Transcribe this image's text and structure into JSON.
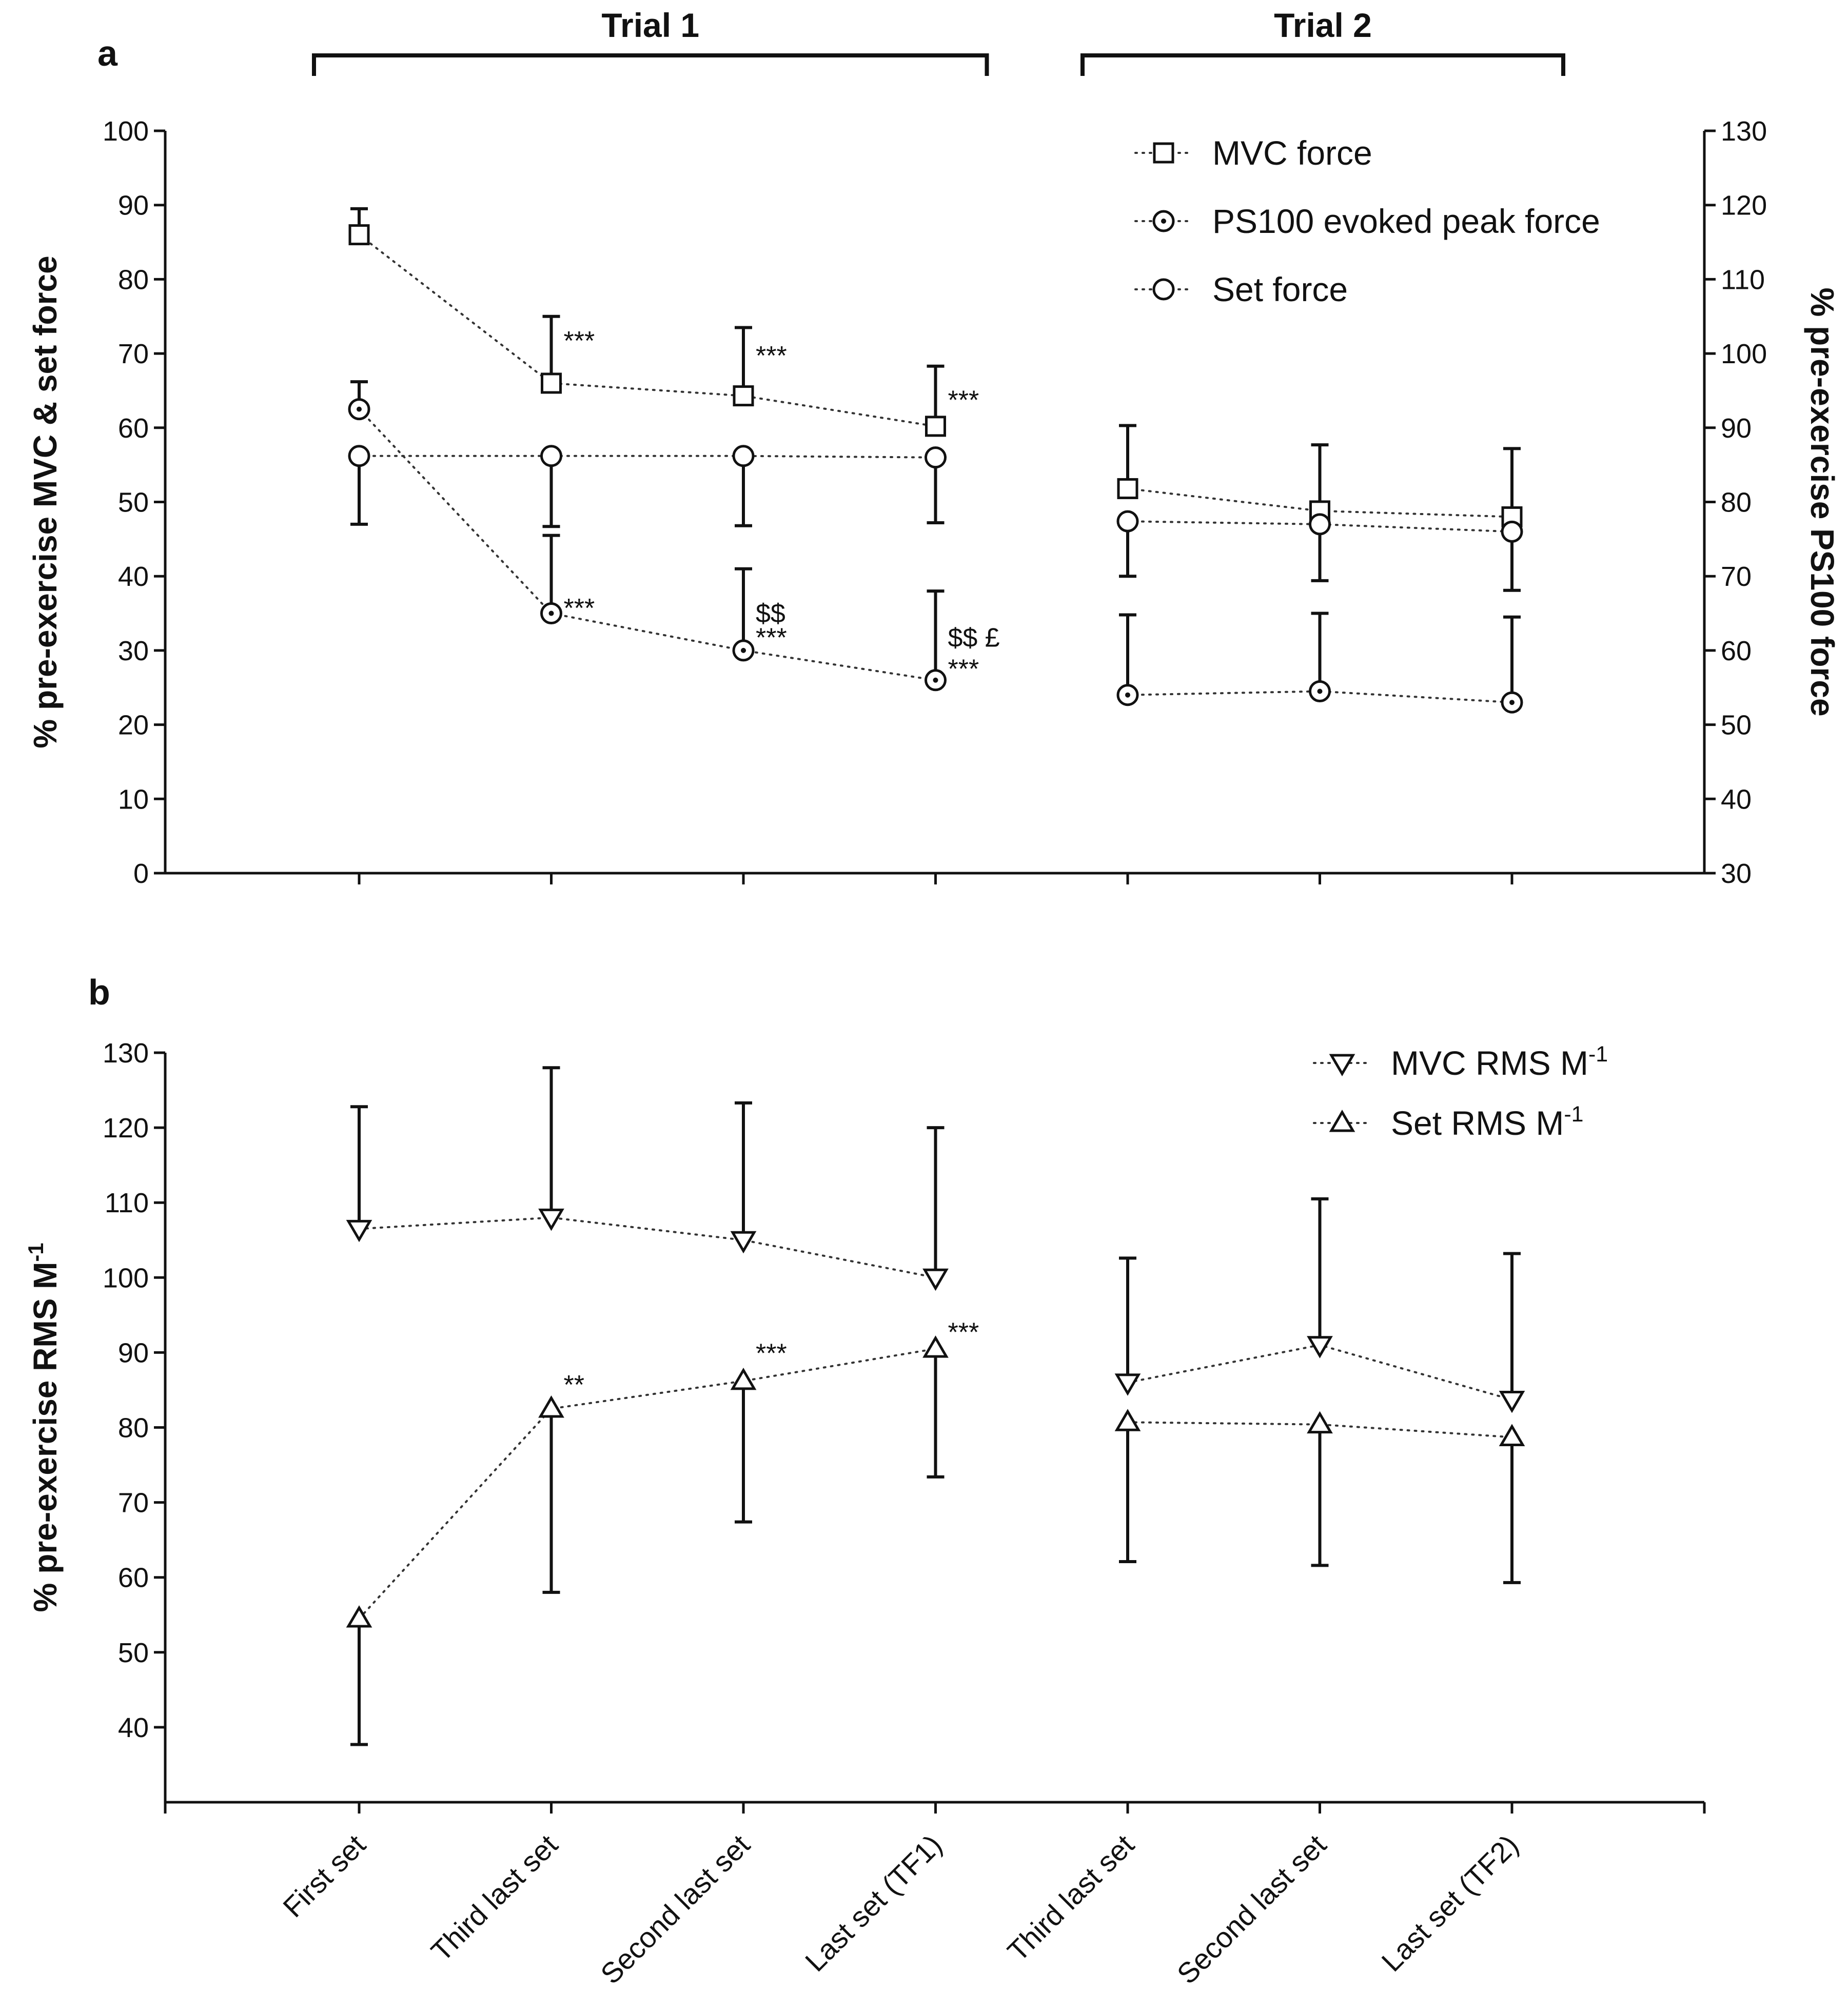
{
  "chart_data": [
    {
      "id": "panel-a",
      "panel_label": "a",
      "type": "line",
      "categories": [
        "First set",
        "Third last set",
        "Second last set",
        "Last set (TF1)",
        "Third last set",
        "Second last set",
        "Last set (TF2)"
      ],
      "groups": [
        {
          "label": "Trial 1",
          "from": 0,
          "to": 3
        },
        {
          "label": "Trial 2",
          "from": 4,
          "to": 6
        }
      ],
      "ylabel": "% pre-exercise MVC & set force",
      "ylim": [
        0,
        100
      ],
      "yticks": [
        0,
        10,
        20,
        30,
        40,
        50,
        60,
        70,
        80,
        90,
        100
      ],
      "y2label": "% pre-exercise PS100 force",
      "y2lim": [
        30,
        130
      ],
      "y2ticks": [
        30,
        40,
        50,
        60,
        70,
        80,
        90,
        100,
        110,
        120,
        130
      ],
      "legend_position": "top-right",
      "series": [
        {
          "name": "MVC force",
          "marker": "square",
          "axis": "left",
          "values": [
            86,
            66,
            64.3,
            60.2,
            51.8,
            48.8,
            48
          ],
          "error_upper": [
            89.5,
            75,
            73.5,
            68.3,
            60.3,
            57.7,
            57.2
          ],
          "error_lower": [
            null,
            null,
            null,
            null,
            null,
            null,
            null
          ]
        },
        {
          "name": "PS100 evoked peak force",
          "marker": "circle-dot",
          "axis": "left",
          "values": [
            62.5,
            35,
            30,
            26,
            24,
            24.5,
            23
          ],
          "error_upper": [
            66.2,
            45.5,
            41,
            38,
            34.8,
            35,
            34.5
          ],
          "error_lower": [
            null,
            null,
            null,
            null,
            null,
            null,
            null
          ]
        },
        {
          "name": "Set force",
          "marker": "circle",
          "axis": "left",
          "values": [
            56.2,
            56.2,
            56.2,
            56,
            47.4,
            47,
            46
          ],
          "error_upper": [
            null,
            null,
            null,
            null,
            null,
            null,
            null
          ],
          "error_lower": [
            47,
            46.7,
            46.8,
            47.2,
            40,
            39.4,
            38.1
          ]
        }
      ],
      "annotations": [
        {
          "text": "***",
          "category": 1,
          "y": 70.5
        },
        {
          "text": "***",
          "category": 2,
          "y": 68.5
        },
        {
          "text": "***",
          "category": 3,
          "y": 62.5
        },
        {
          "text": "***",
          "category": 1,
          "y": 34.5
        },
        {
          "text": "$$",
          "category": 2,
          "y": 33.8
        },
        {
          "text": "***",
          "category": 2,
          "y": 30.5
        },
        {
          "text": "$$ £",
          "category": 3,
          "y": 30.5
        },
        {
          "text": "***",
          "category": 3,
          "y": 26.3
        }
      ]
    },
    {
      "id": "panel-b",
      "panel_label": "b",
      "type": "line",
      "categories": [
        "First set",
        "Third last set",
        "Second last set",
        "Last set (TF1)",
        "Third last set",
        "Second last set",
        "Last set (TF2)"
      ],
      "ylabel": "% pre-exercise RMS M",
      "ylabel_sup": "-1",
      "ylim": [
        30,
        130
      ],
      "yticks": [
        40,
        50,
        60,
        70,
        80,
        90,
        100,
        110,
        120,
        130
      ],
      "legend_position": "top-right",
      "series": [
        {
          "name": "MVC RMS M",
          "name_sup": "-1",
          "marker": "triangle-down",
          "values": [
            106.5,
            108,
            105,
            100,
            86,
            91,
            83.7
          ],
          "error_upper": [
            122.8,
            128,
            123.3,
            120,
            102.6,
            110.5,
            103.2
          ],
          "error_lower": [
            null,
            null,
            null,
            null,
            null,
            null,
            null
          ]
        },
        {
          "name": "Set RMS M",
          "name_sup": "-1",
          "marker": "triangle-up",
          "values": [
            54.5,
            82.5,
            86.2,
            90.5,
            80.7,
            80.4,
            78.7
          ],
          "error_upper": [
            null,
            null,
            null,
            null,
            null,
            null,
            null
          ],
          "error_lower": [
            37.7,
            58,
            67.4,
            73.4,
            62.1,
            61.6,
            59.3
          ]
        }
      ],
      "annotations": [
        {
          "text": "**",
          "category": 1,
          "y": 84.5
        },
        {
          "text": "***",
          "category": 2,
          "y": 88.7
        },
        {
          "text": "***",
          "category": 3,
          "y": 91.5
        }
      ]
    }
  ]
}
